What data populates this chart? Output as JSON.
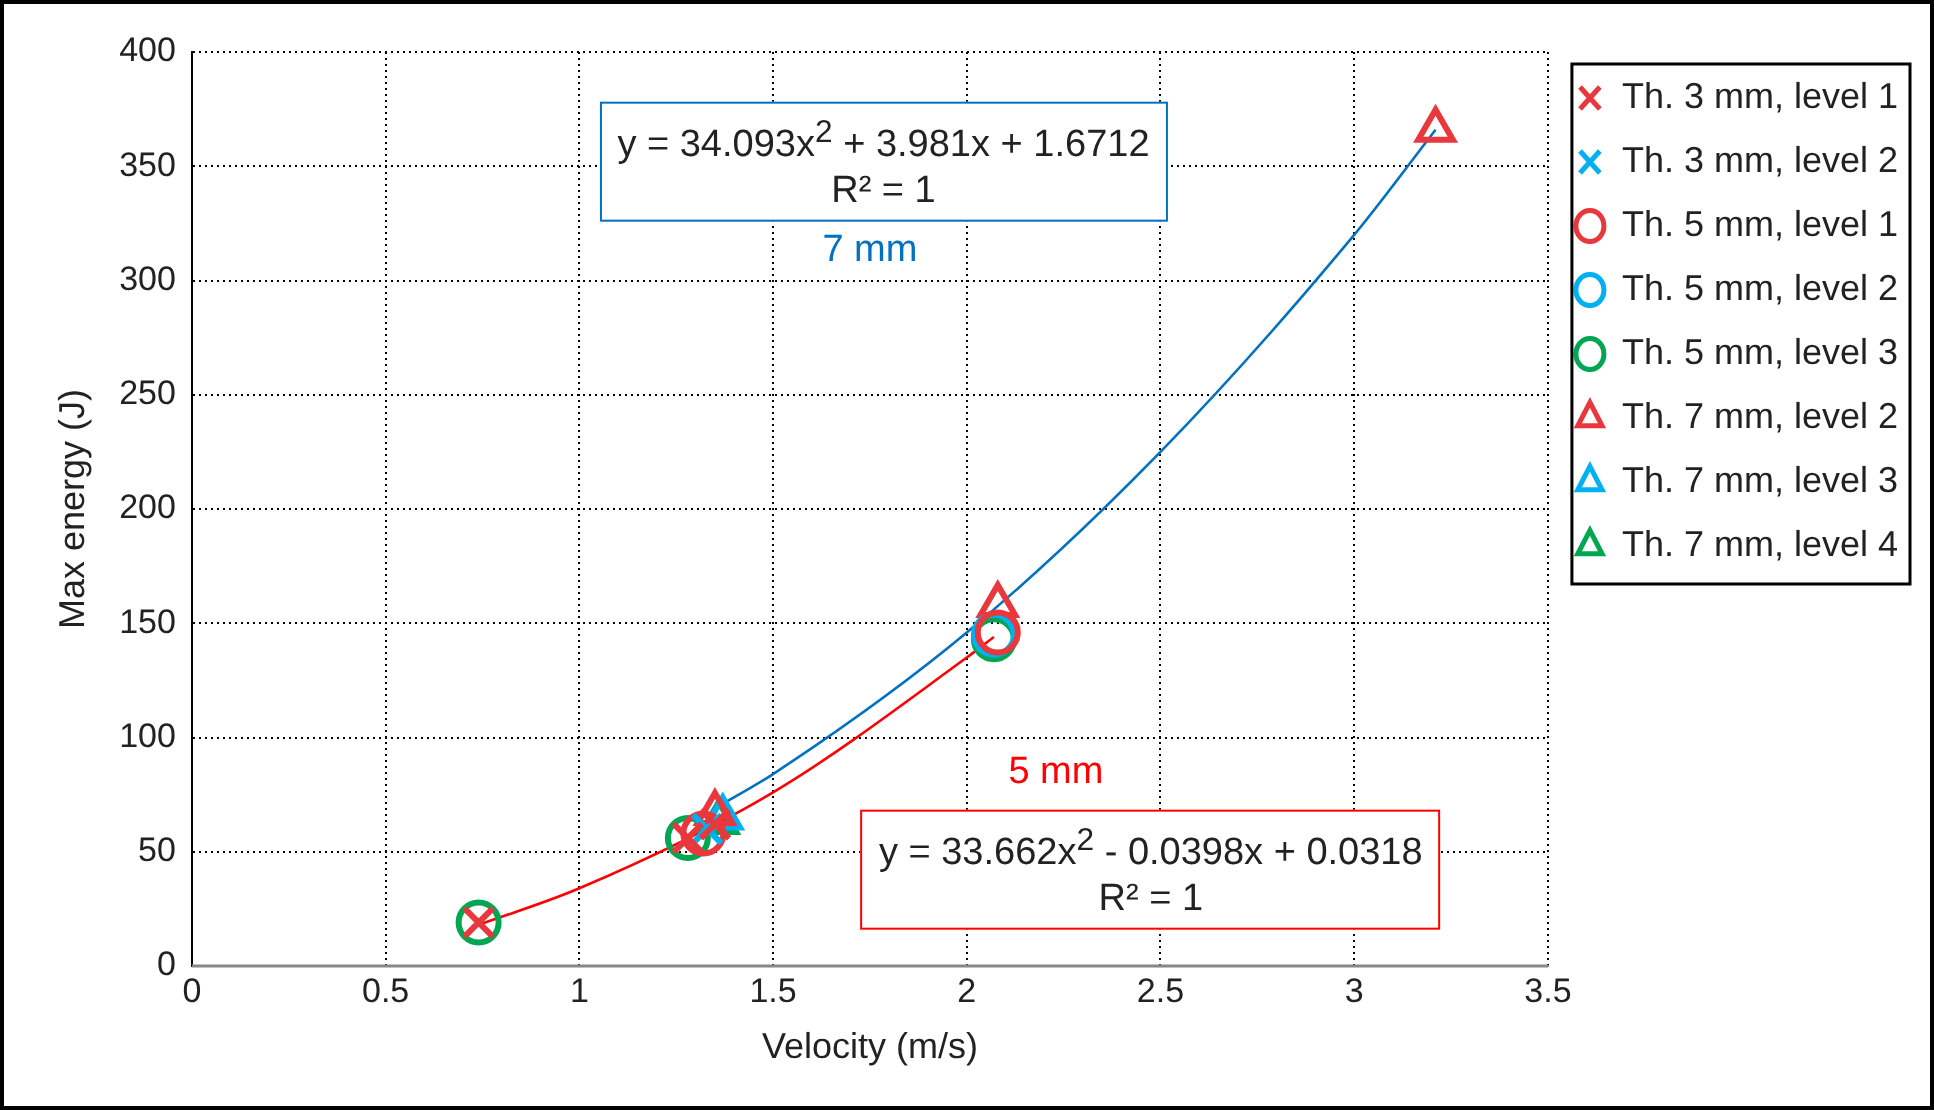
{
  "chart_data": {
    "type": "scatter",
    "xlabel": "Velocity (m/s)",
    "ylabel": "Max energy (J)",
    "xlim": [
      0,
      3.5
    ],
    "xticks": [
      0,
      0.5,
      1,
      1.5,
      2,
      2.5,
      3,
      3.5
    ],
    "ylim": [
      0,
      400
    ],
    "yticks": [
      0,
      50,
      100,
      150,
      200,
      250,
      300,
      350,
      400
    ],
    "grid": true,
    "legend": "right",
    "series": [
      {
        "name": "Th. 3 mm, level 1",
        "color": "#e8383d",
        "marker": "cross",
        "x": [
          0.74,
          1.28,
          1.35
        ],
        "values": [
          19,
          56,
          62
        ]
      },
      {
        "name": "Th. 3 mm, level 2",
        "color": "#00b0f0",
        "marker": "cross",
        "x": [
          1.33
        ],
        "values": [
          60
        ]
      },
      {
        "name": "Th. 5 mm, level 1",
        "color": "#e8383d",
        "marker": "circle",
        "x": [
          1.32,
          2.08
        ],
        "values": [
          58,
          146
        ]
      },
      {
        "name": "Th. 5 mm, level 2",
        "color": "#00b0f0",
        "marker": "circle",
        "x": [
          2.07
        ],
        "values": [
          145
        ]
      },
      {
        "name": "Th. 5 mm, level 3",
        "color": "#00a651",
        "marker": "circle",
        "x": [
          0.74,
          1.28,
          2.07
        ],
        "values": [
          19,
          56,
          143
        ]
      },
      {
        "name": "Th. 7 mm, level 2",
        "color": "#e8383d",
        "marker": "triangle",
        "x": [
          1.35,
          2.08,
          3.21
        ],
        "values": [
          67,
          158,
          366
        ]
      },
      {
        "name": "Th. 7 mm, level 3",
        "color": "#00b0f0",
        "marker": "triangle",
        "x": [
          1.37
        ],
        "values": [
          65
        ]
      },
      {
        "name": "Th. 7 mm, level 4",
        "color": "#00a651",
        "marker": "triangle",
        "x": [
          1.36
        ],
        "values": [
          63
        ]
      },
      {
        "type": "line",
        "color": "#0070c0",
        "marker": "none",
        "x": [
          1.35,
          1.5,
          2,
          2.5,
          3,
          3.21
        ],
        "values": [
          69,
          84,
          146,
          225,
          320,
          366
        ]
      },
      {
        "type": "line",
        "color": "#ff0000",
        "marker": "none",
        "x": [
          0.74,
          1,
          1.5,
          2,
          2.07
        ],
        "values": [
          18,
          34,
          76,
          135,
          144
        ]
      }
    ],
    "annotations": [
      "y = 34.093x$^{2}$ + 3.981x + 1.6712\nR² = 1",
      "7 mm",
      "5 mm",
      "y = 33.662x$^{2}$ - 0.0398x + 0.0318\nR² = 1"
    ]
  }
}
